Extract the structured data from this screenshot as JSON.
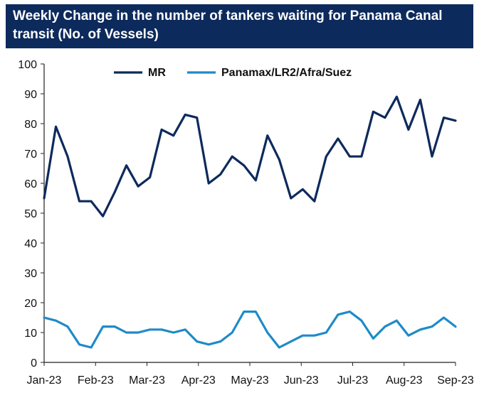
{
  "title": "Weekly Change in the number of tankers waiting for Panama Canal transit (No. of Vessels)",
  "colors": {
    "title_bg": "#0d2a5c",
    "title_text": "#ffffff",
    "mr": "#0d2a5c",
    "panamax": "#1f8ac8",
    "axis": "#222222"
  },
  "chart_data": {
    "type": "line",
    "title": "Weekly Change in the number of tankers waiting for Panama Canal transit (No. of Vessels)",
    "xlabel": "",
    "ylabel": "",
    "ylim": [
      0,
      100
    ],
    "yticks": [
      0,
      10,
      20,
      30,
      40,
      50,
      60,
      70,
      80,
      90,
      100
    ],
    "xtick_labels": [
      "Jan-23",
      "Feb-23",
      "Mar-23",
      "Apr-23",
      "May-23",
      "Jun-23",
      "Jul-23",
      "Aug-23",
      "Sep-23"
    ],
    "grid": false,
    "legend_position": "top-center",
    "series": [
      {
        "name": "MR",
        "color": "#0d2a5c",
        "values": [
          55,
          79,
          69,
          54,
          54,
          49,
          57,
          66,
          59,
          62,
          78,
          76,
          83,
          82,
          60,
          63,
          69,
          66,
          61,
          76,
          68,
          55,
          58,
          54,
          69,
          75,
          69,
          69,
          84,
          82,
          89,
          78,
          88,
          69,
          82,
          81
        ]
      },
      {
        "name": "Panamax/LR2/Afra/Suez",
        "color": "#1f8ac8",
        "values": [
          15,
          14,
          12,
          6,
          5,
          12,
          12,
          10,
          10,
          11,
          11,
          10,
          11,
          7,
          6,
          7,
          10,
          17,
          17,
          10,
          5,
          7,
          9,
          9,
          10,
          16,
          17,
          14,
          8,
          12,
          14,
          9,
          11,
          12,
          15,
          12
        ]
      }
    ]
  }
}
